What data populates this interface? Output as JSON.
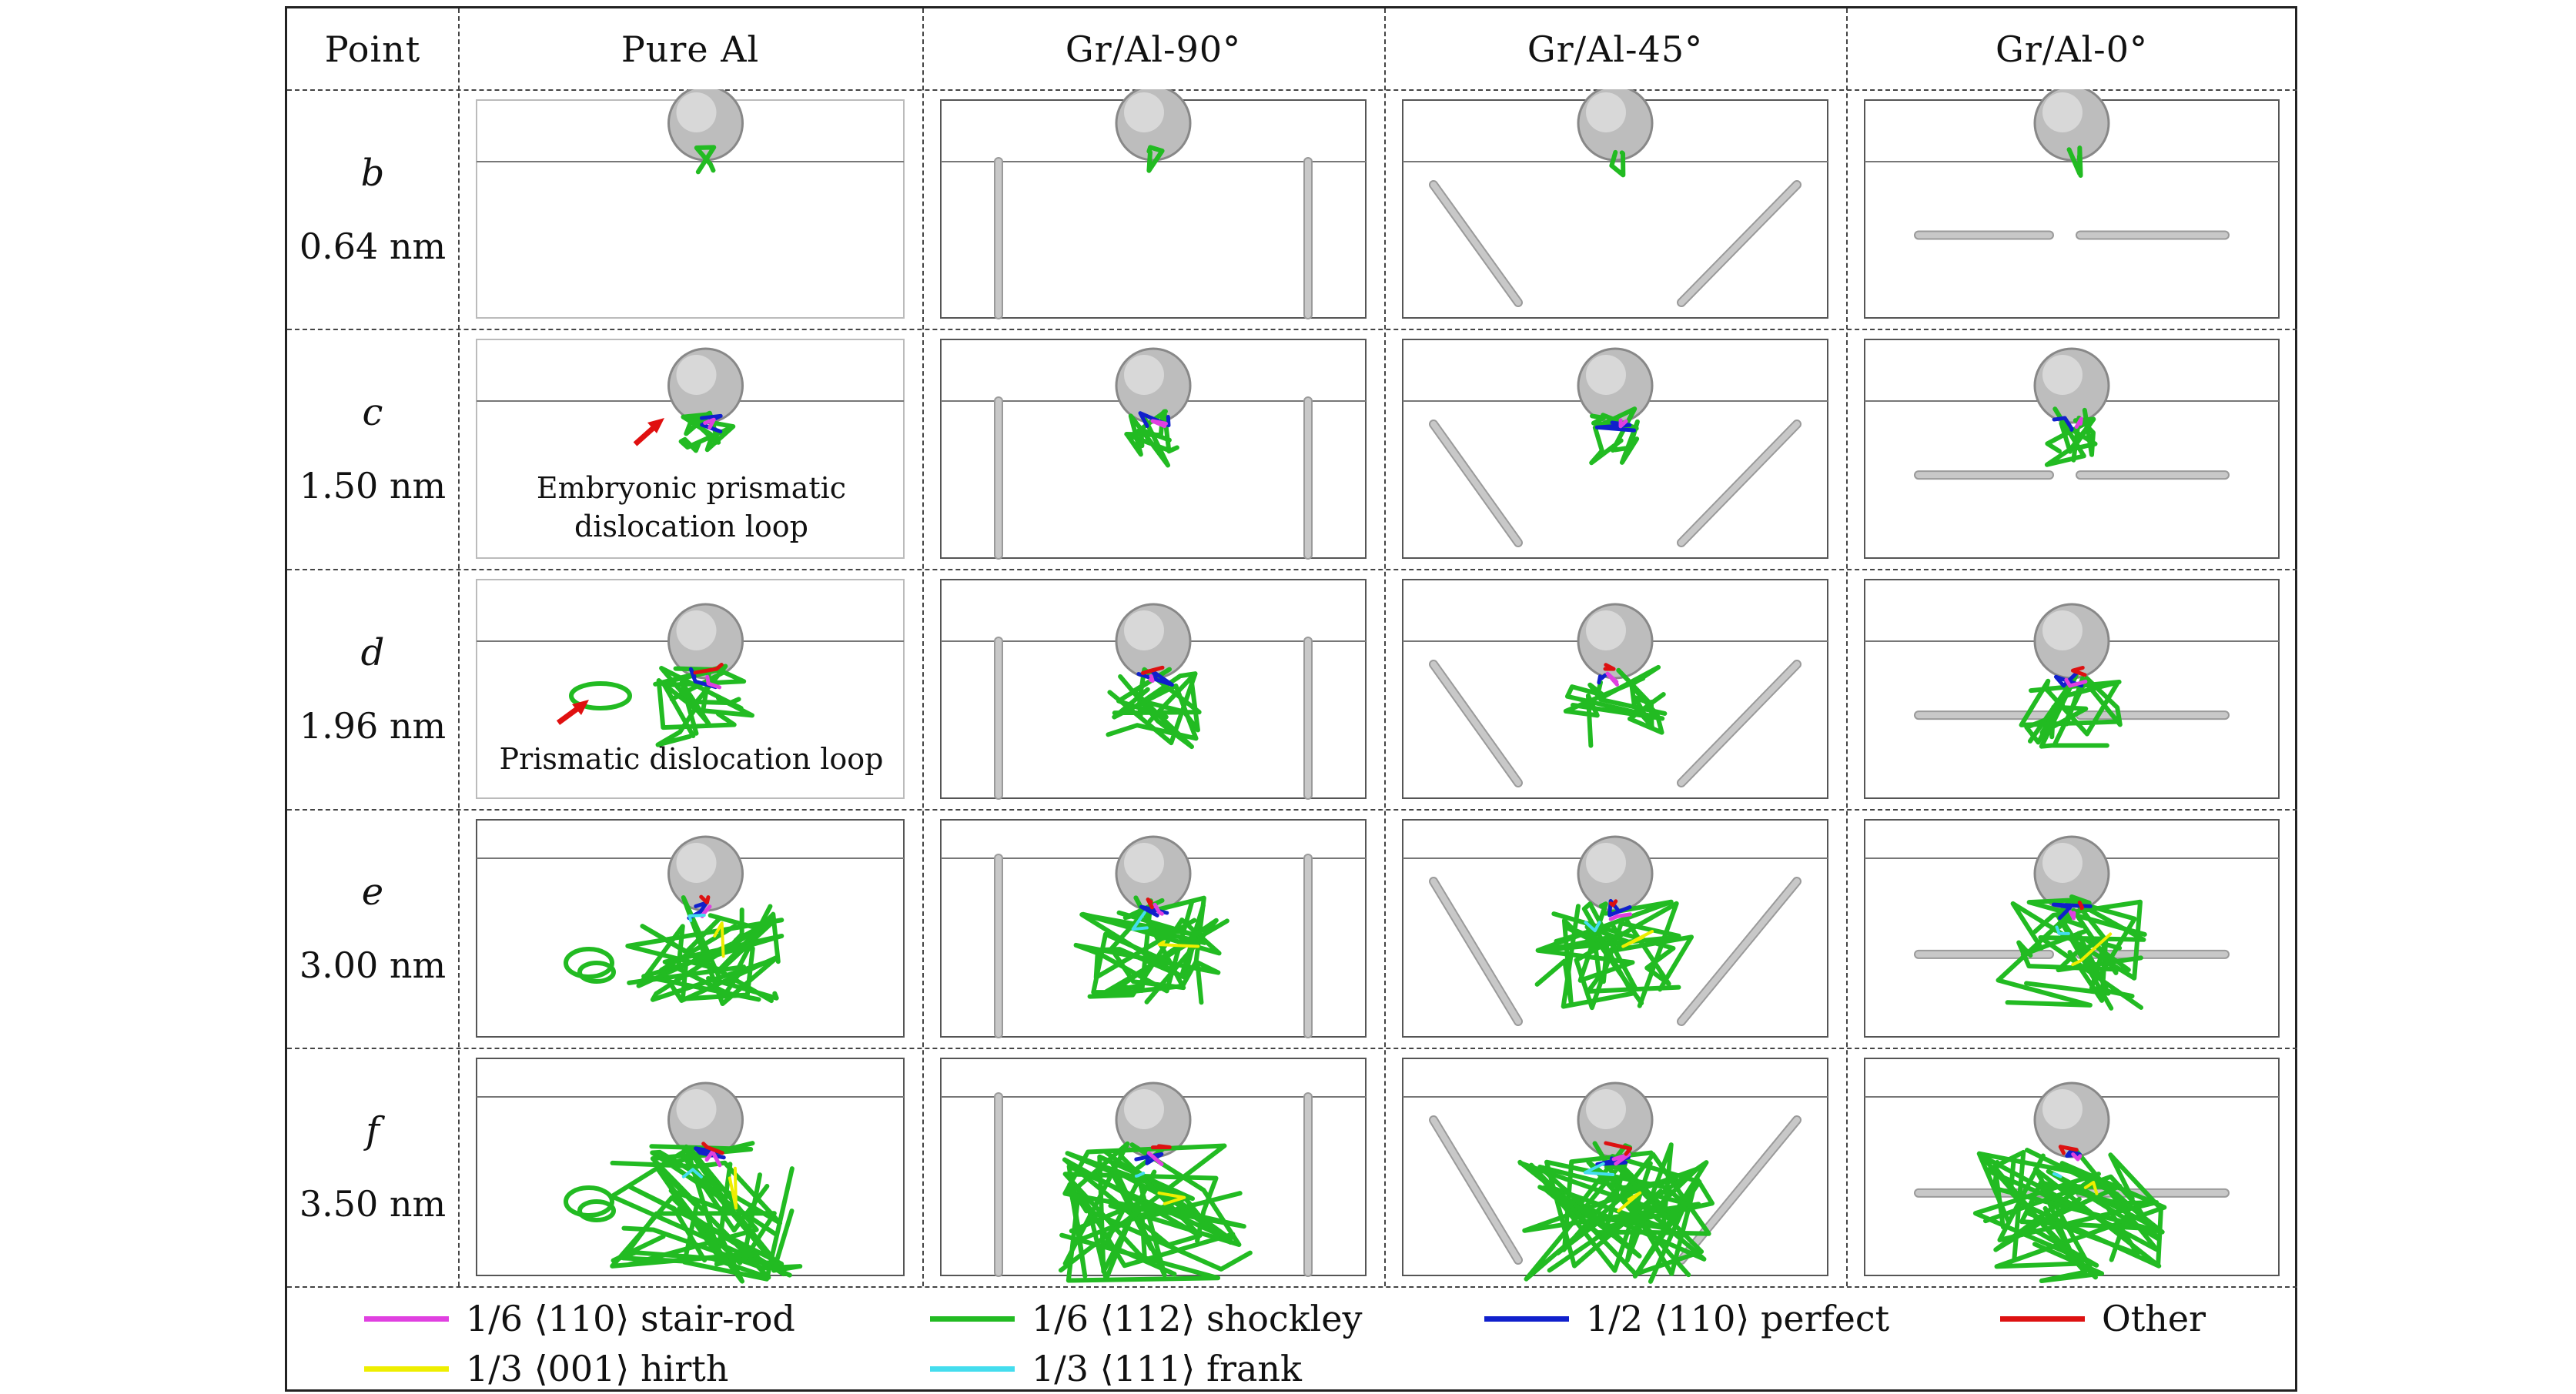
{
  "header": {
    "point": "Point",
    "columns": [
      "Pure Al",
      "Gr/Al-90°",
      "Gr/Al-45°",
      "Gr/Al-0°"
    ]
  },
  "rows": [
    {
      "point": "b",
      "size": "0.64 nm"
    },
    {
      "point": "c",
      "size": "1.50 nm"
    },
    {
      "point": "d",
      "size": "1.96 nm"
    },
    {
      "point": "e",
      "size": "3.00 nm"
    },
    {
      "point": "f",
      "size": "3.50 nm"
    }
  ],
  "annotations": {
    "c_pure": "Embryonic prismatic\ndislocation loop",
    "d_pure": "Prismatic dislocation loop"
  },
  "legend": [
    {
      "label": "1/6 ⟨110⟩ stair-rod",
      "color": "#e040e0"
    },
    {
      "label": "1/6 ⟨112⟩ shockley",
      "color": "#22bb22"
    },
    {
      "label": "1/2 ⟨110⟩ perfect",
      "color": "#1020cc"
    },
    {
      "label": "Other",
      "color": "#dd1111"
    },
    {
      "label": "1/3 ⟨001⟩ hirth",
      "color": "#eeee00"
    },
    {
      "label": "1/3 ⟨111⟩ frank",
      "color": "#44ddee"
    }
  ],
  "colors": {
    "shockley": "#22bb22",
    "stairrod": "#e040e0",
    "perfect": "#1020cc",
    "other": "#dd1111",
    "hirth": "#eeee00",
    "frank": "#44ddee",
    "graphene": "#c8c8c8",
    "indenter": "#bdbdbd",
    "arrow": "#e01010"
  }
}
